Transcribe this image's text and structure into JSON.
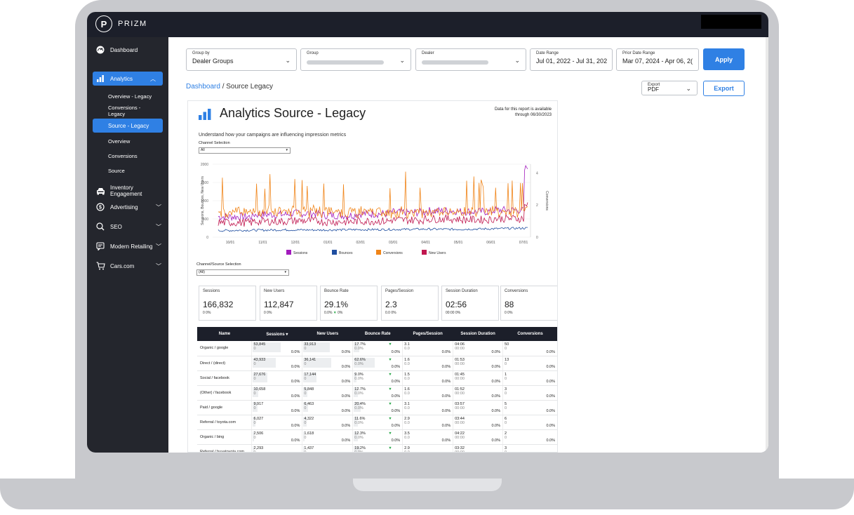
{
  "app": {
    "logo_letter": "P",
    "logo_name": "PRIZM"
  },
  "sidebar": {
    "items": [
      {
        "label": "Dashboard",
        "icon": "gauge-icon"
      },
      {
        "label": "Analytics",
        "icon": "bar-chart-icon",
        "chevron": "^"
      },
      {
        "label": "Inventory Engagement",
        "icon": "car-icon"
      },
      {
        "label": "Advertising",
        "icon": "dollar-circle-icon",
        "chevron": "v"
      },
      {
        "label": "SEO",
        "icon": "magnify-icon",
        "chevron": "v"
      },
      {
        "label": "Modern Retailing",
        "icon": "chat-icon",
        "chevron": "v"
      },
      {
        "label": "Cars.com",
        "icon": "cart-icon",
        "chevron": "v"
      }
    ],
    "analytics_sub": [
      "Overview - Legacy",
      "Conversions - Legacy",
      "Source - Legacy",
      "Overview",
      "Conversions",
      "Source"
    ]
  },
  "filters": {
    "group_by": {
      "label": "Group by",
      "value": "Dealer Groups"
    },
    "group": {
      "label": "Group"
    },
    "dealer": {
      "label": "Dealer"
    },
    "date_range": {
      "label": "Date Range",
      "value": "Jul 01, 2022 - Jul 31, 202"
    },
    "prior_date_range": {
      "label": "Prior Date Range",
      "value": "Mar 07, 2024 - Apr 06, 2("
    },
    "apply": "Apply",
    "export_label": "Export",
    "export_value": "PDF",
    "export_button": "Export"
  },
  "breadcrumb": {
    "root": "Dashboard",
    "sep": " / ",
    "current": "Source Legacy"
  },
  "report": {
    "title": "Analytics Source - Legacy",
    "note_line1": "Data for this report is available",
    "note_line2": "through 06/30/2023",
    "description": "Understand how your campaigns are influencing impression metrics",
    "channel_label": "Channel Selection",
    "channel_value": "All",
    "channel_source_label": "Channel/Source Selection",
    "channel_source_value": "(All)"
  },
  "chart_data": {
    "type": "line",
    "x": [
      "10/01",
      "11/01",
      "12/01",
      "01/01",
      "02/01",
      "03/01",
      "04/01",
      "05/01",
      "06/01",
      "07/01"
    ],
    "ylabel": "Sessions, Bounces, New Users",
    "y2label": "Conversions",
    "ylim": [
      0,
      2000
    ],
    "y2lim": [
      0,
      4
    ],
    "yticks": [
      0,
      500,
      1000,
      1500,
      2000
    ],
    "y2ticks": [
      0,
      2,
      4
    ],
    "series": [
      {
        "name": "Sessions",
        "color": "#a21bbd",
        "values": [
          560,
          620,
          650,
          600,
          640,
          680,
          720,
          700,
          740,
          1960
        ]
      },
      {
        "name": "Bounces",
        "color": "#1f4ea0",
        "values": [
          180,
          190,
          200,
          195,
          205,
          210,
          220,
          215,
          230,
          250
        ]
      },
      {
        "name": "Conversions",
        "color": "#f08418",
        "values": [
          1720,
          780,
          820,
          750,
          700,
          690,
          710,
          760,
          780,
          600
        ]
      },
      {
        "name": "New Users",
        "color": "#c0174f",
        "values": [
          400,
          430,
          450,
          420,
          440,
          470,
          500,
          480,
          510,
          880
        ]
      }
    ],
    "legend": "bottom"
  },
  "kpis": [
    {
      "title": "Sessions",
      "value": "166,832",
      "sub": "0   0%"
    },
    {
      "title": "New Users",
      "value": "112,847",
      "sub": "0   0%"
    },
    {
      "title": "Bounce Rate",
      "value": "29.1%",
      "sub": "0.0%",
      "tri": "▼",
      "sub2": "0%"
    },
    {
      "title": "Pages/Session",
      "value": "2.3",
      "sub": "0.0   0%"
    },
    {
      "title": "Session Duration",
      "value": "02:56",
      "sub": "00:00   0%"
    },
    {
      "title": "Conversions",
      "value": "88",
      "sub": "0   0%"
    }
  ],
  "table": {
    "headers": [
      "Name",
      "Sessions ▾",
      "New Users",
      "Bounce Rate",
      "Pages/Session",
      "Session Duration",
      "Conversions"
    ],
    "rows": [
      {
        "name": "Organic / google",
        "sessions": "53,845",
        "new_users": "33,913",
        "bounce": "17.7%",
        "pages": "3.1",
        "duration": "04:06",
        "conv": "50"
      },
      {
        "name": "Direct / (direct)",
        "sessions": "43,933",
        "new_users": "36,141",
        "bounce": "62.6%",
        "pages": "1.6",
        "duration": "01:53",
        "conv": "13"
      },
      {
        "name": "Social / facebook",
        "sessions": "27,676",
        "new_users": "17,144",
        "bounce": "9.0%",
        "pages": "1.5",
        "duration": "01:45",
        "conv": "1"
      },
      {
        "name": "(Other) / facebook",
        "sessions": "10,658",
        "new_users": "5,848",
        "bounce": "12.7%",
        "pages": "1.6",
        "duration": "01:52",
        "conv": "3"
      },
      {
        "name": "Paid / google",
        "sessions": "9,917",
        "new_users": "6,463",
        "bounce": "20.4%",
        "pages": "3.1",
        "duration": "03:57",
        "conv": "5"
      },
      {
        "name": "Referral / toyota.com",
        "sessions": "6,027",
        "new_users": "4,322",
        "bounce": "11.6%",
        "pages": "2.9",
        "duration": "03:44",
        "conv": "6"
      },
      {
        "name": "Organic / bing",
        "sessions": "2,506",
        "new_users": "1,618",
        "bounce": "12.3%",
        "pages": "3.5",
        "duration": "04:22",
        "conv": "2"
      },
      {
        "name": "Referral / buyatoyota.com",
        "sessions": "2,293",
        "new_users": "1,437",
        "bounce": "19.2%",
        "pages": "2.9",
        "duration": "03:32",
        "conv": "3"
      }
    ],
    "zero": "0",
    "zero_pct": "0.0%",
    "zero_time": "00:00",
    "zero_dec": "0.0",
    "down_tri": "▼"
  }
}
